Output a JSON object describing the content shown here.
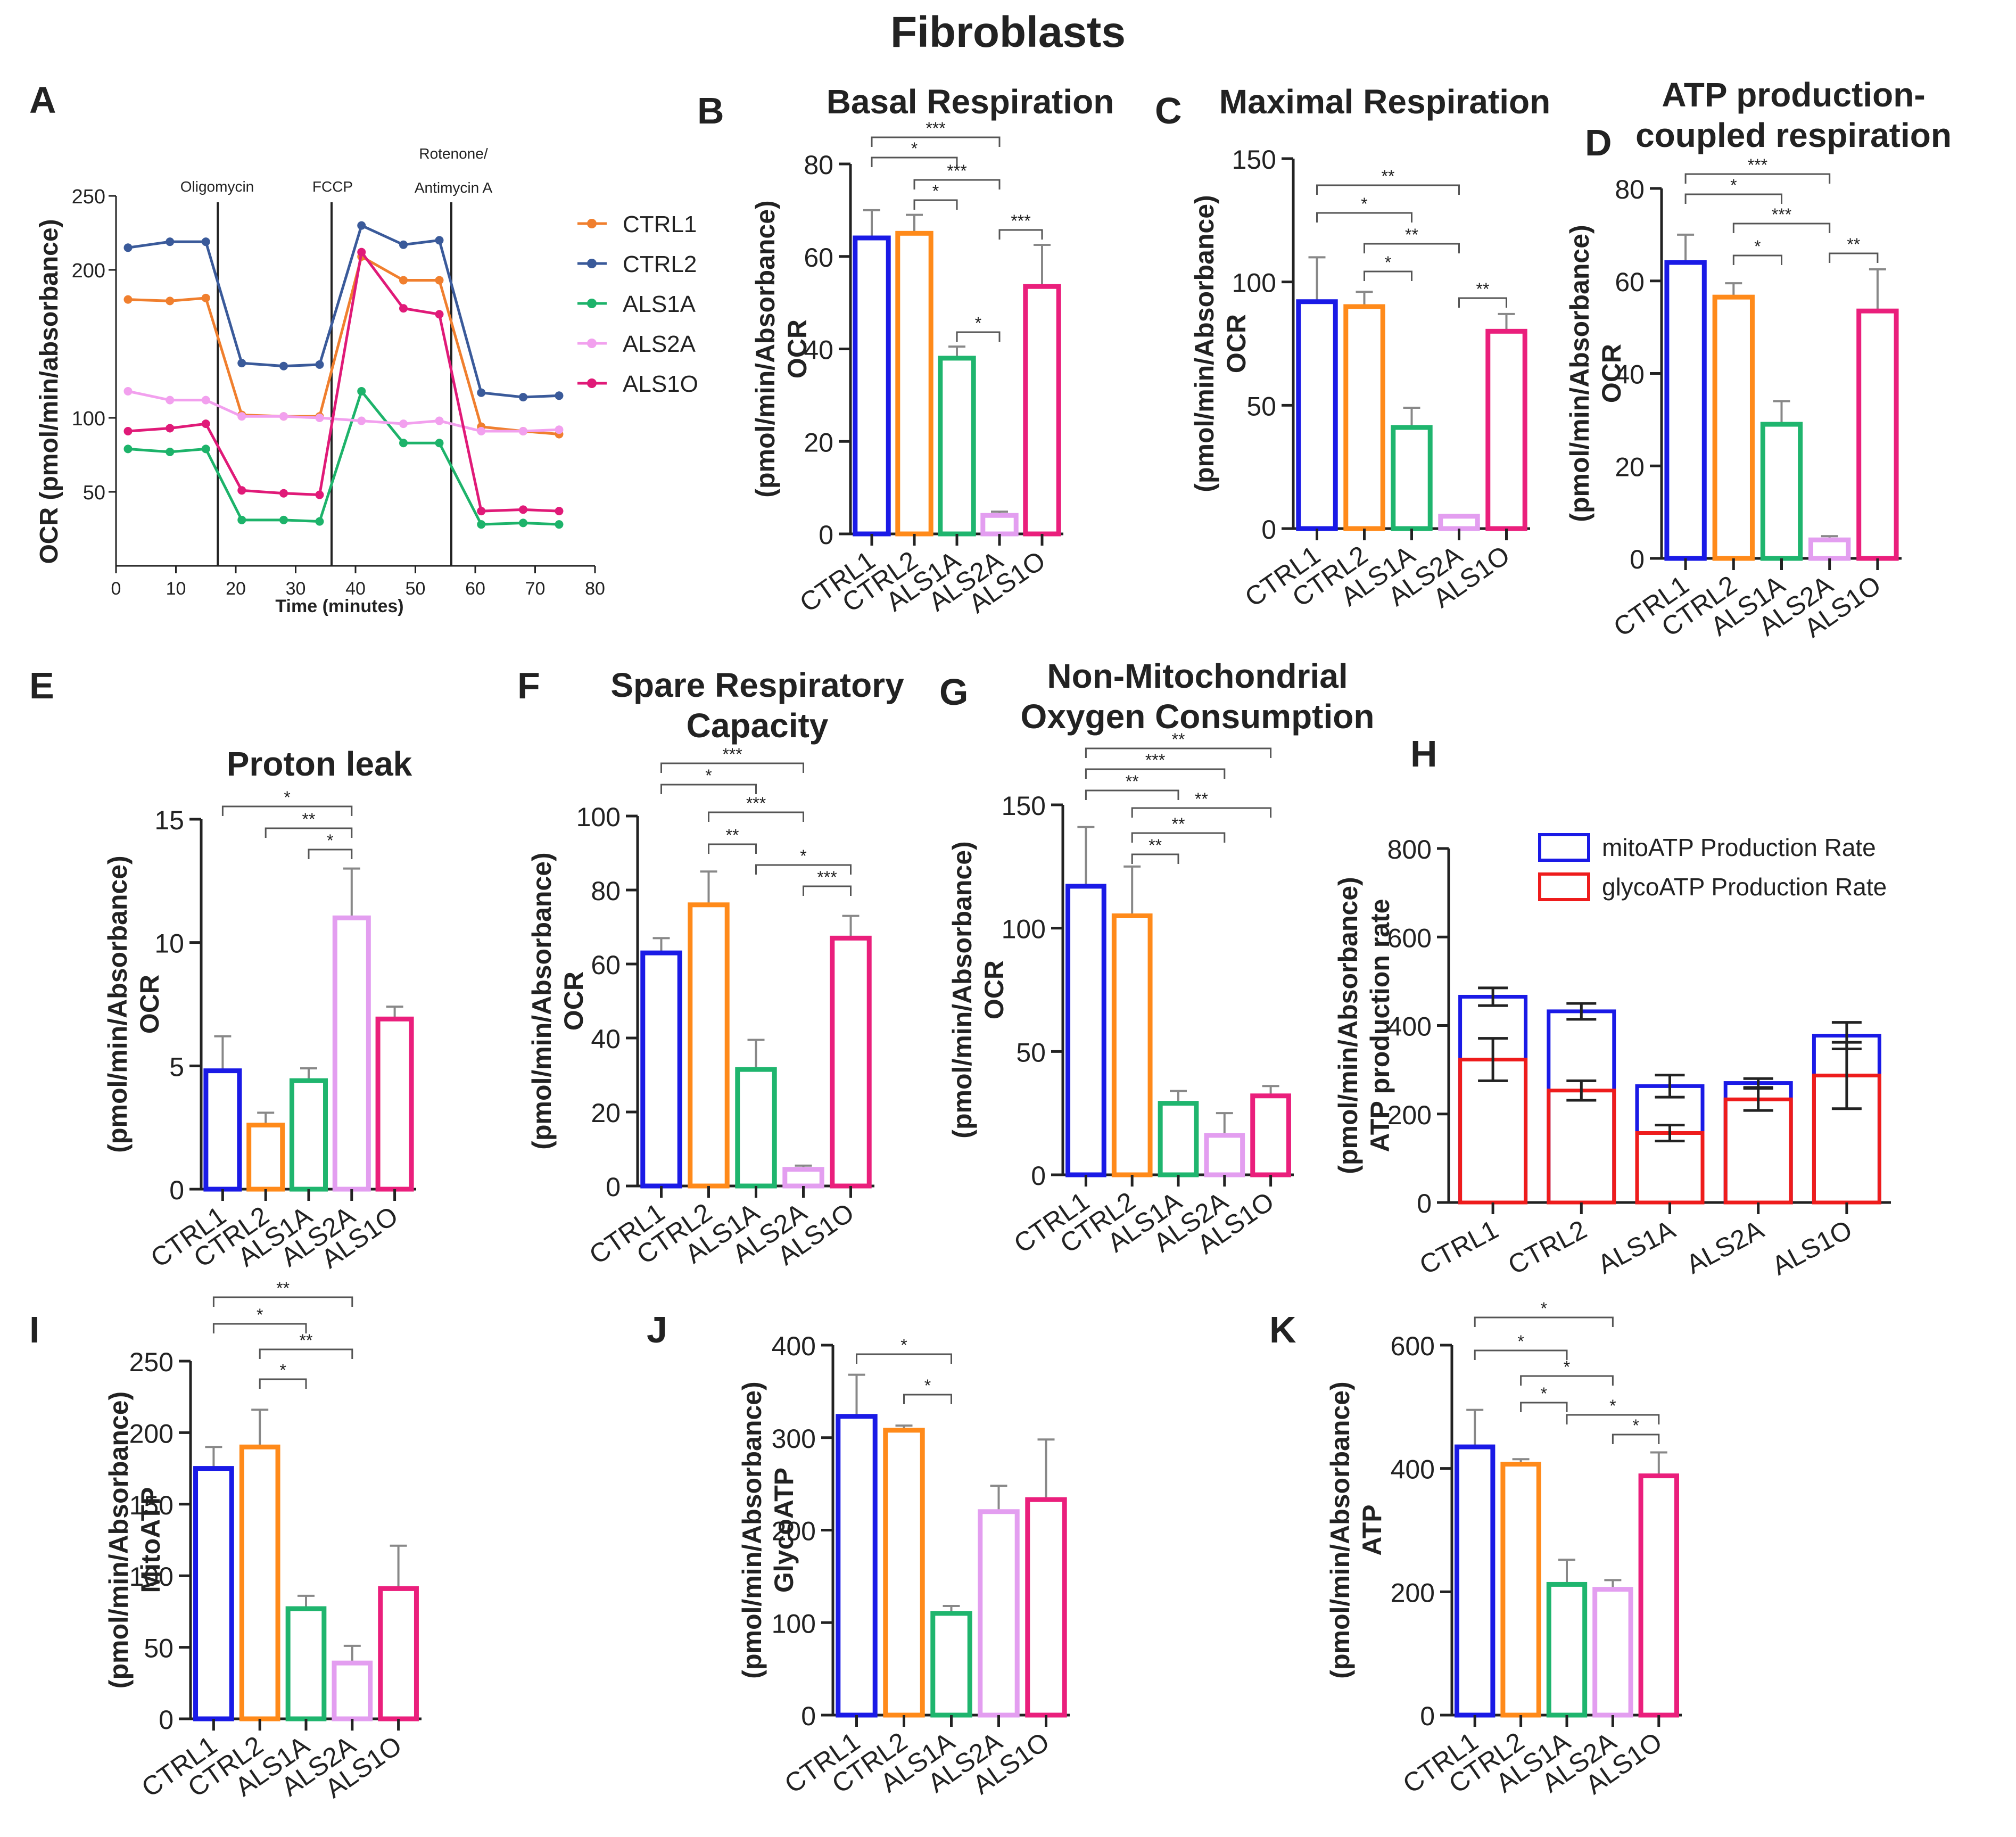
{
  "figure_title": "Fibroblasts",
  "colors": {
    "CTRL1": "#1a1ae6",
    "CTRL2": "#ff8a1a",
    "ALS1A": "#1fb56e",
    "ALS2A": "#e39ef0",
    "ALS1O": "#ea1f7c",
    "mito": "#1a1ae6",
    "glyco": "#ee1c1c",
    "line_CTRL1": "#f07f2e",
    "line_CTRL2": "#3a5a9a",
    "line_ALS1A": "#1db36a",
    "line_ALS2A": "#f2a0ee",
    "line_ALS1O": "#e01a78"
  },
  "chart_data": [
    {
      "id": "A",
      "type": "line",
      "panel_label": "A",
      "title": "",
      "xlabel": "Time (minutes)",
      "ylabel": "OCR (pmol/min/absorbance)",
      "xlim": [
        0,
        80
      ],
      "ylim": [
        0,
        250
      ],
      "xticks": [
        "0",
        "10",
        "20",
        "30",
        "40",
        "50",
        "60",
        "70",
        "80"
      ],
      "yticks": [
        "50",
        "100",
        "200",
        "250"
      ],
      "annotations": [
        "Oligomycin",
        "FCCP",
        "Rotenone/",
        "Antimycin A"
      ],
      "x": [
        2,
        9,
        15,
        21,
        28,
        34,
        41,
        48,
        54,
        61,
        68,
        74
      ],
      "series": [
        {
          "name": "CTRL1",
          "values": [
            180,
            179,
            181,
            102,
            101,
            101,
            209,
            193,
            193,
            94,
            91,
            89
          ]
        },
        {
          "name": "CTRL2",
          "values": [
            215,
            219,
            219,
            137,
            135,
            136,
            230,
            217,
            220,
            117,
            114,
            115
          ]
        },
        {
          "name": "ALS1A",
          "values": [
            79,
            77,
            79,
            31,
            31,
            30,
            118,
            83,
            83,
            28,
            29,
            28
          ]
        },
        {
          "name": "ALS2A",
          "values": [
            118,
            112,
            112,
            101,
            101,
            100,
            98,
            96,
            98,
            91,
            91,
            92
          ]
        },
        {
          "name": "ALS1O",
          "values": [
            91,
            93,
            96,
            51,
            49,
            48,
            212,
            174,
            170,
            37,
            38,
            37
          ]
        }
      ]
    },
    {
      "id": "B",
      "type": "bar",
      "panel_label": "B",
      "title": [
        "Basal Respiration"
      ],
      "ylabel": [
        "OCR",
        "(pmol/min/Absorbance)"
      ],
      "categories": [
        "CTRL1",
        "CTRL2",
        "ALS1A",
        "ALS2A",
        "ALS1O"
      ],
      "values": [
        64,
        65,
        38,
        4,
        53.5
      ],
      "errors": [
        6,
        4,
        2.5,
        0.8,
        9
      ],
      "ylim": [
        0,
        80
      ],
      "yticks": [
        "0",
        "20",
        "40",
        "60",
        "80"
      ],
      "significance": [
        {
          "from": 0,
          "to": 3,
          "label": "***"
        },
        {
          "from": 0,
          "to": 2,
          "label": "*"
        },
        {
          "from": 1,
          "to": 3,
          "label": "***"
        },
        {
          "from": 1,
          "to": 2,
          "label": "*"
        },
        {
          "from": 2,
          "to": 3,
          "label": "*"
        },
        {
          "from": 3,
          "to": 4,
          "label": "***"
        }
      ]
    },
    {
      "id": "C",
      "type": "bar",
      "panel_label": "C",
      "title": [
        "Maximal Respiration"
      ],
      "ylabel": [
        "OCR",
        "(pmol/min/Absorbance)"
      ],
      "categories": [
        "CTRL1",
        "CTRL2",
        "ALS1A",
        "ALS2A",
        "ALS1O"
      ],
      "values": [
        92,
        90,
        41,
        5,
        80
      ],
      "errors": [
        18,
        6,
        8,
        0.5,
        7
      ],
      "ylim": [
        0,
        150
      ],
      "yticks": [
        "0",
        "50",
        "100",
        "150"
      ],
      "significance": [
        {
          "from": 0,
          "to": 3,
          "label": "**"
        },
        {
          "from": 0,
          "to": 2,
          "label": "*"
        },
        {
          "from": 1,
          "to": 3,
          "label": "**"
        },
        {
          "from": 1,
          "to": 2,
          "label": "*"
        },
        {
          "from": 3,
          "to": 4,
          "label": "**"
        }
      ]
    },
    {
      "id": "D",
      "type": "bar",
      "panel_label": "D",
      "title": [
        "ATP production-",
        "coupled respiration"
      ],
      "ylabel": [
        "OCR",
        "(pmol/min/Absorbance)"
      ],
      "categories": [
        "CTRL1",
        "CTRL2",
        "ALS1A",
        "ALS2A",
        "ALS1O"
      ],
      "values": [
        64,
        56.5,
        29,
        4,
        53.5
      ],
      "errors": [
        6,
        3,
        5,
        0.8,
        9
      ],
      "ylim": [
        0,
        80
      ],
      "yticks": [
        "0",
        "20",
        "40",
        "60",
        "80"
      ],
      "significance": [
        {
          "from": 0,
          "to": 3,
          "label": "***"
        },
        {
          "from": 0,
          "to": 2,
          "label": "*"
        },
        {
          "from": 1,
          "to": 3,
          "label": "***"
        },
        {
          "from": 1,
          "to": 2,
          "label": "*"
        },
        {
          "from": 3,
          "to": 4,
          "label": "**"
        }
      ]
    },
    {
      "id": "E",
      "type": "bar",
      "panel_label": "E",
      "title": [
        "Proton leak"
      ],
      "ylabel": [
        "OCR",
        "(pmol/min/Absorbance)"
      ],
      "categories": [
        "CTRL1",
        "CTRL2",
        "ALS1A",
        "ALS2A",
        "ALS1O"
      ],
      "values": [
        4.8,
        2.6,
        4.4,
        11,
        6.9
      ],
      "errors": [
        1.4,
        0.5,
        0.5,
        2,
        0.5
      ],
      "ylim": [
        0,
        15
      ],
      "yticks": [
        "0",
        "5",
        "10",
        "15"
      ],
      "significance": [
        {
          "from": 0,
          "to": 3,
          "label": "*"
        },
        {
          "from": 1,
          "to": 3,
          "label": "**"
        },
        {
          "from": 2,
          "to": 3,
          "label": "*"
        }
      ]
    },
    {
      "id": "F",
      "type": "bar",
      "panel_label": "F",
      "title": [
        "Spare Respiratory",
        "Capacity"
      ],
      "ylabel": [
        "OCR",
        "(pmol/min/Absorbance)"
      ],
      "categories": [
        "CTRL1",
        "CTRL2",
        "ALS1A",
        "ALS2A",
        "ALS1O"
      ],
      "values": [
        63,
        76,
        31.5,
        4.5,
        67
      ],
      "errors": [
        4,
        9,
        8,
        1,
        6
      ],
      "ylim": [
        0,
        100
      ],
      "yticks": [
        "0",
        "20",
        "40",
        "60",
        "80",
        "100"
      ],
      "significance": [
        {
          "from": 0,
          "to": 3,
          "label": "***"
        },
        {
          "from": 0,
          "to": 2,
          "label": "*"
        },
        {
          "from": 1,
          "to": 3,
          "label": "***"
        },
        {
          "from": 1,
          "to": 2,
          "label": "**"
        },
        {
          "from": 2,
          "to": 4,
          "label": "*"
        },
        {
          "from": 3,
          "to": 4,
          "label": "***"
        }
      ]
    },
    {
      "id": "G",
      "type": "bar",
      "panel_label": "G",
      "title": [
        "Non-Mitochondrial",
        "Oxygen Consumption"
      ],
      "ylabel": [
        "OCR",
        "(pmol/min/Absorbance)"
      ],
      "categories": [
        "CTRL1",
        "CTRL2",
        "ALS1A",
        "ALS2A",
        "ALS1O"
      ],
      "values": [
        117,
        105,
        29,
        16,
        32
      ],
      "errors": [
        24,
        20,
        5,
        9,
        4
      ],
      "ylim": [
        0,
        150
      ],
      "yticks": [
        "0",
        "50",
        "100",
        "150"
      ],
      "significance": [
        {
          "from": 0,
          "to": 4,
          "label": "**"
        },
        {
          "from": 0,
          "to": 3,
          "label": "***"
        },
        {
          "from": 0,
          "to": 2,
          "label": "**"
        },
        {
          "from": 1,
          "to": 4,
          "label": "**"
        },
        {
          "from": 1,
          "to": 3,
          "label": "**"
        },
        {
          "from": 1,
          "to": 2,
          "label": "**"
        }
      ]
    },
    {
      "id": "H",
      "type": "bar",
      "subtype": "stacked",
      "panel_label": "H",
      "title": [],
      "ylabel": [
        "ATP production rate",
        "(pmol/min/Absorbance)"
      ],
      "categories": [
        "CTRL1",
        "CTRL2",
        "ALS1A",
        "ALS2A",
        "ALS1O"
      ],
      "ylim": [
        0,
        800
      ],
      "yticks": [
        "0",
        "200",
        "400",
        "600",
        "800"
      ],
      "legend": "top-right",
      "series": [
        {
          "name": "glycoATP Production Rate",
          "values": [
            323,
            253,
            157,
            233,
            287
          ],
          "errors": [
            48,
            22,
            18,
            25,
            75
          ]
        },
        {
          "name": "mitoATP Production Rate",
          "values": [
            465,
            432,
            263,
            270,
            377
          ],
          "errors": [
            20,
            18,
            25,
            10,
            30
          ]
        }
      ]
    },
    {
      "id": "I",
      "type": "bar",
      "panel_label": "I",
      "title": [],
      "ylabel": [
        "MitoATP",
        "(pmol/min/Absorbance)"
      ],
      "categories": [
        "CTRL1",
        "CTRL2",
        "ALS1A",
        "ALS2A",
        "ALS1O"
      ],
      "values": [
        175,
        190,
        77,
        39,
        91
      ],
      "errors": [
        15,
        26,
        9,
        12,
        30
      ],
      "ylim": [
        0,
        250
      ],
      "yticks": [
        "0",
        "50",
        "100",
        "150",
        "200",
        "250"
      ],
      "significance": [
        {
          "from": 0,
          "to": 3,
          "label": "**"
        },
        {
          "from": 0,
          "to": 2,
          "label": "*"
        },
        {
          "from": 1,
          "to": 3,
          "label": "**"
        },
        {
          "from": 1,
          "to": 2,
          "label": "*"
        }
      ]
    },
    {
      "id": "J",
      "type": "bar",
      "panel_label": "J",
      "title": [],
      "ylabel": [
        "GlycoATP",
        "(pmol/min/Absorbance)"
      ],
      "categories": [
        "CTRL1",
        "CTRL2",
        "ALS1A",
        "ALS2A",
        "ALS1O"
      ],
      "values": [
        323,
        308,
        110,
        220,
        233
      ],
      "errors": [
        45,
        5,
        8,
        28,
        65
      ],
      "ylim": [
        0,
        400
      ],
      "yticks": [
        "0",
        "100",
        "200",
        "300",
        "400"
      ],
      "significance": [
        {
          "from": 0,
          "to": 2,
          "label": "*"
        },
        {
          "from": 1,
          "to": 2,
          "label": "*"
        }
      ]
    },
    {
      "id": "K",
      "type": "bar",
      "panel_label": "K",
      "title": [],
      "ylabel": [
        "ATP",
        "(pmol/min/Absorbance)"
      ],
      "categories": [
        "CTRL1",
        "CTRL2",
        "ALS1A",
        "ALS2A",
        "ALS1O"
      ],
      "values": [
        435,
        407,
        212,
        204,
        388
      ],
      "errors": [
        60,
        8,
        40,
        15,
        38
      ],
      "ylim": [
        0,
        600
      ],
      "yticks": [
        "0",
        "200",
        "400",
        "600"
      ],
      "significance": [
        {
          "from": 0,
          "to": 3,
          "label": "*"
        },
        {
          "from": 0,
          "to": 2,
          "label": "*"
        },
        {
          "from": 1,
          "to": 3,
          "label": "*"
        },
        {
          "from": 1,
          "to": 2,
          "label": "*"
        },
        {
          "from": 2,
          "to": 4,
          "label": "*"
        },
        {
          "from": 3,
          "to": 4,
          "label": "*"
        }
      ]
    }
  ]
}
